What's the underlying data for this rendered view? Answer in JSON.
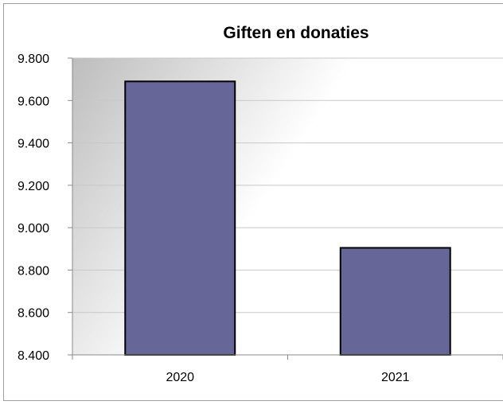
{
  "chart_data": {
    "type": "bar",
    "title": "Giften en donaties",
    "categories": [
      "2020",
      "2021"
    ],
    "values": [
      9690,
      8905
    ],
    "xlabel": "",
    "ylabel": "",
    "ylim": [
      8400,
      9800
    ],
    "yticks": [
      8400,
      8600,
      8800,
      9000,
      9200,
      9400,
      9600,
      9800
    ],
    "ytick_labels": [
      "8.400",
      "8.600",
      "8.800",
      "9.000",
      "9.200",
      "9.400",
      "9.600",
      "9.800"
    ],
    "grid": true,
    "legend": "none",
    "colors": {
      "bar": "#666699",
      "bar_outline": "#000000",
      "plot_gradient_dark": "#bdbdbd",
      "plot_gradient_light": "#ffffff"
    }
  }
}
